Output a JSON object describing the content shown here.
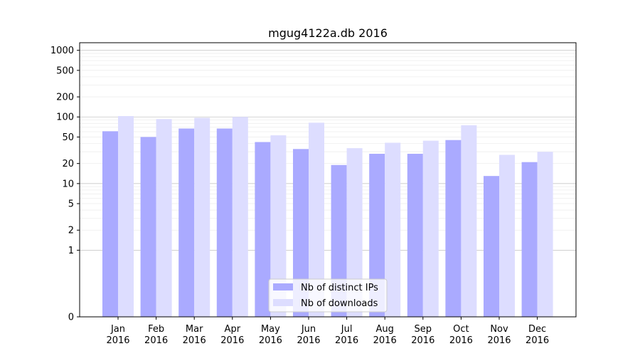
{
  "chart_data": {
    "type": "bar",
    "title": "mgug4122a.db 2016",
    "xlabel": "",
    "ylabel": "",
    "yscale": "symlog",
    "ylim": [
      0,
      1300
    ],
    "grid": "horizontal",
    "legend_position": "bottom-center",
    "categories": [
      "Jan\n2016",
      "Feb\n2016",
      "Mar\n2016",
      "Apr\n2016",
      "May\n2016",
      "Jun\n2016",
      "Jul\n2016",
      "Aug\n2016",
      "Sep\n2016",
      "Oct\n2016",
      "Nov\n2016",
      "Dec\n2016"
    ],
    "yticks": [
      0,
      1,
      2,
      5,
      10,
      20,
      50,
      100,
      200,
      500,
      1000
    ],
    "series": [
      {
        "name": "Nb of distinct IPs",
        "color": "#aaaaff",
        "values": [
          61,
          50,
          67,
          67,
          42,
          33,
          19,
          28,
          28,
          45,
          13,
          21
        ]
      },
      {
        "name": "Nb of downloads",
        "color": "#ddddff",
        "values": [
          103,
          93,
          97,
          100,
          53,
          82,
          34,
          41,
          44,
          75,
          27,
          30
        ]
      }
    ]
  }
}
